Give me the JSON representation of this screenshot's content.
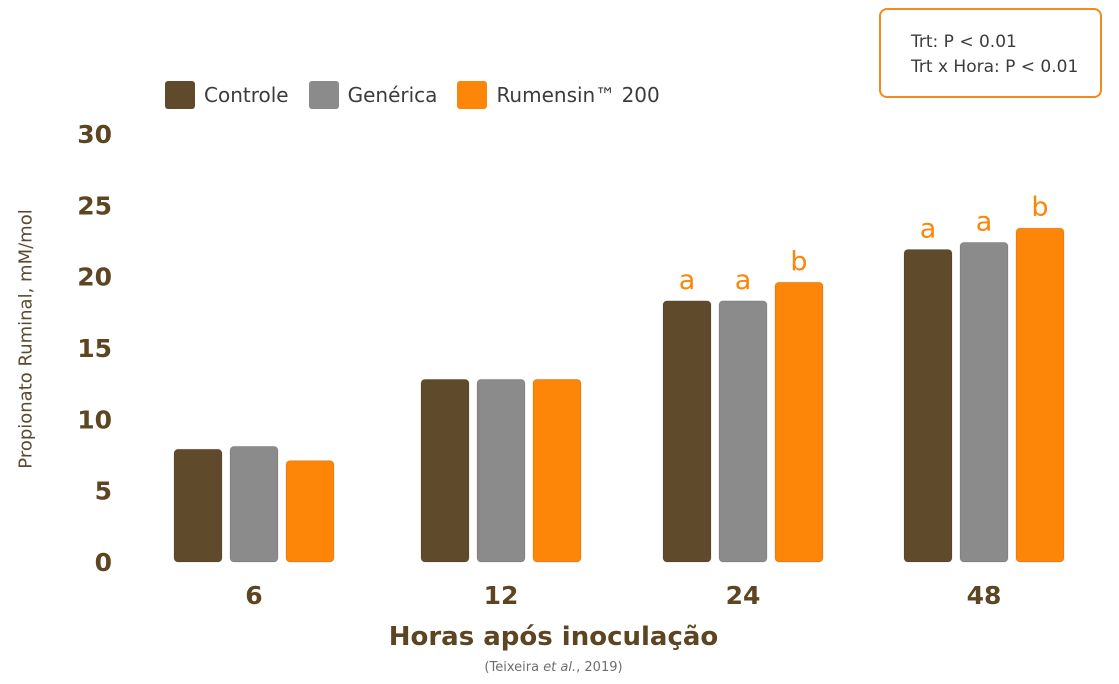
{
  "chart_data": {
    "type": "bar",
    "categories": [
      "6",
      "12",
      "24",
      "48"
    ],
    "series": [
      {
        "name": "Controle",
        "color": "#5f4b2c",
        "values": [
          7.9,
          12.8,
          18.3,
          21.9
        ],
        "letters": [
          "",
          "",
          "a",
          "a"
        ]
      },
      {
        "name": "Genérica",
        "color": "#8b8b8b",
        "values": [
          8.1,
          12.8,
          18.3,
          22.4
        ],
        "letters": [
          "",
          "",
          "a",
          "a"
        ]
      },
      {
        "name": "Rumensin™ 200",
        "color": "#fd8508",
        "values": [
          7.1,
          12.8,
          19.6,
          23.4
        ],
        "letters": [
          "",
          "",
          "b",
          "b"
        ]
      }
    ],
    "ylim": [
      0,
      30
    ],
    "yticks": [
      0,
      5,
      10,
      15,
      20,
      25,
      30
    ],
    "xlabel": "Horas após inoculação",
    "ylabel": "Propionato Ruminal, mM/mol",
    "grid": false,
    "legend": "top-left",
    "citation": {
      "pre": "(Teixeira ",
      "em": "et al.",
      "post": ", 2019)"
    },
    "stats": {
      "line1": "Trt: P < 0.01",
      "line2": "Trt x Hora: P < 0.01"
    },
    "colors": {
      "letters": "#fd8508",
      "ticks": "#5c4520",
      "box_border": "#f28a1c"
    }
  }
}
